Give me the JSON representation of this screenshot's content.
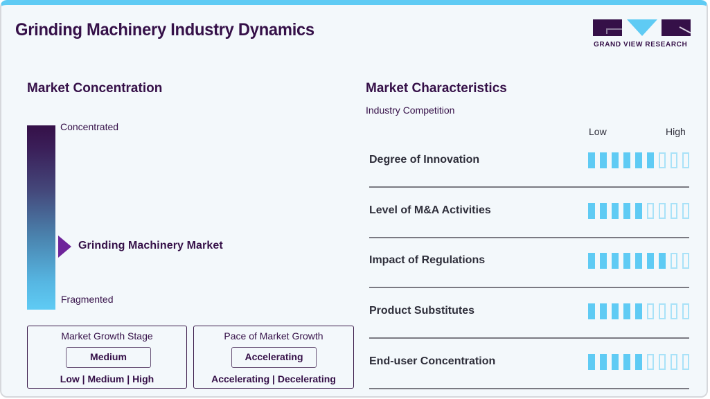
{
  "header": {
    "title": "Grinding Machinery Industry Dynamics",
    "logo_text": "GRAND VIEW RESEARCH"
  },
  "colors": {
    "accent_top_bar": "#5fcbf4",
    "brand_dark": "#351048",
    "marker": "#6e249a",
    "rating_on": "#5fcbf4",
    "rating_off_border": "#a9e2f8"
  },
  "concentration": {
    "title": "Market Concentration",
    "top_label": "Concentrated",
    "bottom_label": "Fragmented",
    "marker_label": "Grinding Machinery Market",
    "marker_position_pct_from_top": 65
  },
  "growth_stage": {
    "heading": "Market Growth Stage",
    "value": "Medium",
    "options_text": "Low | Medium | High"
  },
  "growth_pace": {
    "heading": "Pace of Market Growth",
    "value": "Accelerating",
    "options_text": "Accelerating | Decelerating"
  },
  "characteristics": {
    "title": "Market Characteristics",
    "subtitle": "Industry Competition",
    "scale_low": "Low",
    "scale_high": "High",
    "max_rating": 9,
    "rows": [
      {
        "label": "Degree of Innovation",
        "rating": 6
      },
      {
        "label": "Level of M&A Activities",
        "rating": 5
      },
      {
        "label": "Impact of Regulations",
        "rating": 7
      },
      {
        "label": "Product Substitutes",
        "rating": 5
      },
      {
        "label": "End-user Concentration",
        "rating": 5
      }
    ]
  }
}
